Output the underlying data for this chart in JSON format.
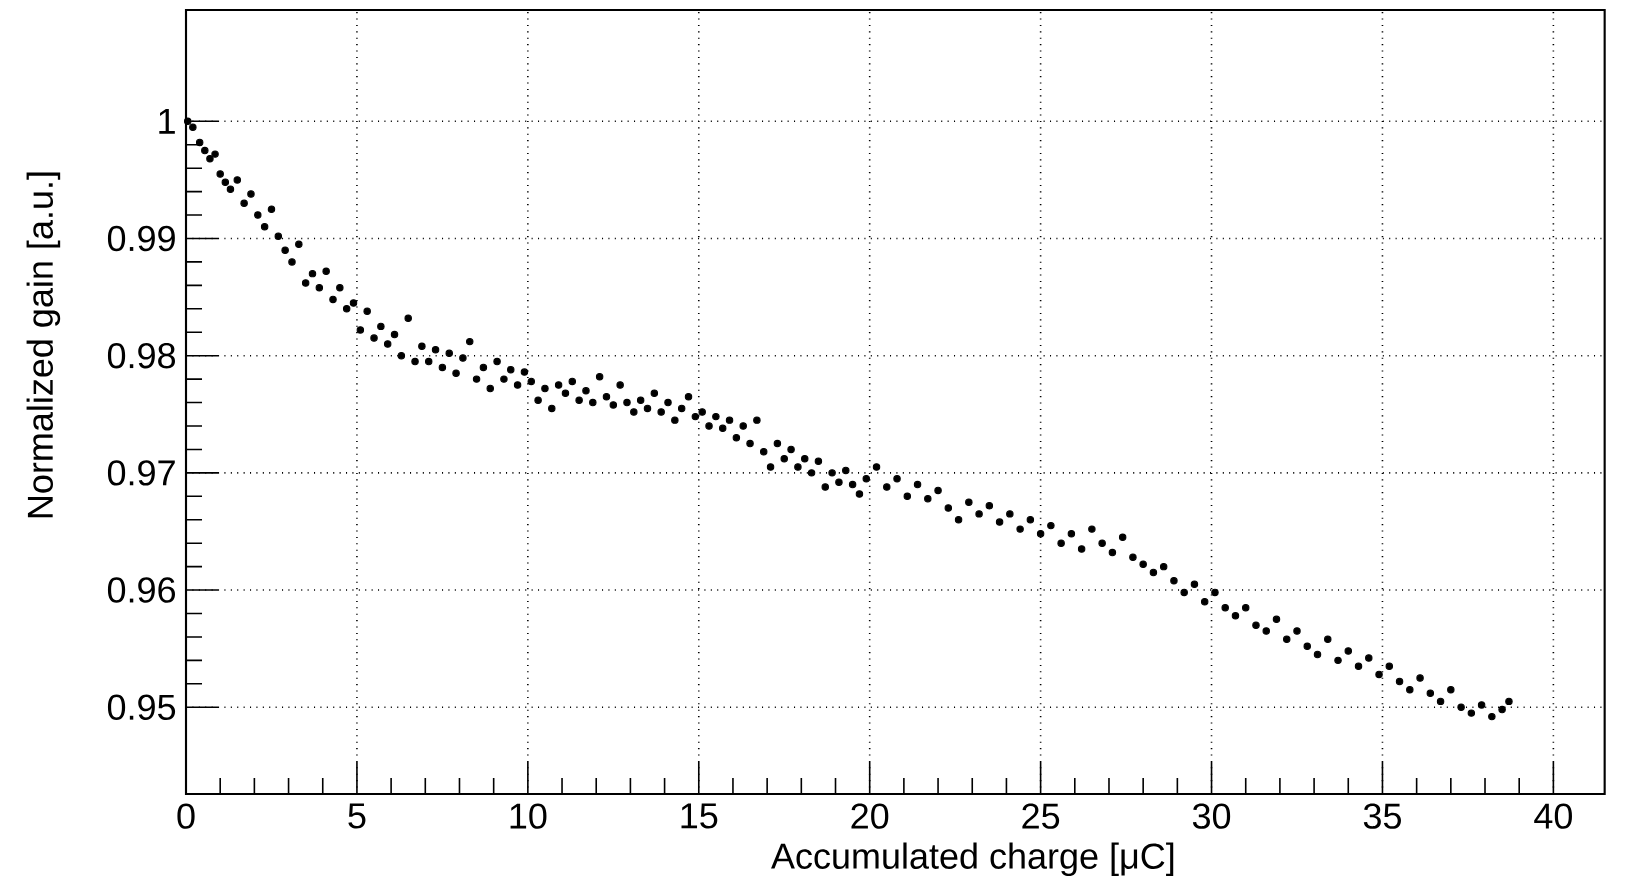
{
  "chart_data": {
    "type": "scatter",
    "xlabel": "Accumulated charge   [μC]",
    "ylabel": "Normalized gain  [a.u.]",
    "xlim": [
      0,
      41.5
    ],
    "ylim": [
      0.9426,
      1.0095
    ],
    "xticks": [
      0,
      5,
      10,
      15,
      20,
      25,
      30,
      35,
      40
    ],
    "yticks": [
      0.95,
      0.96,
      0.97,
      0.98,
      0.99,
      1
    ],
    "grid": true,
    "marker": "circle",
    "color": "#000000",
    "x": [
      0.05,
      0.2,
      0.4,
      0.55,
      0.7,
      0.85,
      1.0,
      1.15,
      1.3,
      1.5,
      1.7,
      1.9,
      2.1,
      2.3,
      2.5,
      2.7,
      2.9,
      3.1,
      3.3,
      3.5,
      3.7,
      3.9,
      4.1,
      4.3,
      4.5,
      4.7,
      4.9,
      5.1,
      5.3,
      5.5,
      5.7,
      5.9,
      6.1,
      6.3,
      6.5,
      6.7,
      6.9,
      7.1,
      7.3,
      7.5,
      7.7,
      7.9,
      8.1,
      8.3,
      8.5,
      8.7,
      8.9,
      9.1,
      9.3,
      9.5,
      9.7,
      9.9,
      10.1,
      10.3,
      10.5,
      10.7,
      10.9,
      11.1,
      11.3,
      11.5,
      11.7,
      11.9,
      12.1,
      12.3,
      12.5,
      12.7,
      12.9,
      13.1,
      13.3,
      13.5,
      13.7,
      13.9,
      14.1,
      14.3,
      14.5,
      14.7,
      14.9,
      15.1,
      15.3,
      15.5,
      15.7,
      15.9,
      16.1,
      16.3,
      16.5,
      16.7,
      16.9,
      17.1,
      17.3,
      17.5,
      17.7,
      17.9,
      18.1,
      18.3,
      18.5,
      18.7,
      18.9,
      19.1,
      19.3,
      19.5,
      19.7,
      19.9,
      20.2,
      20.5,
      20.8,
      21.1,
      21.4,
      21.7,
      22.0,
      22.3,
      22.6,
      22.9,
      23.2,
      23.5,
      23.8,
      24.1,
      24.4,
      24.7,
      25.0,
      25.3,
      25.6,
      25.9,
      26.2,
      26.5,
      26.8,
      27.1,
      27.4,
      27.7,
      28.0,
      28.3,
      28.6,
      28.9,
      29.2,
      29.5,
      29.8,
      30.1,
      30.4,
      30.7,
      31.0,
      31.3,
      31.6,
      31.9,
      32.2,
      32.5,
      32.8,
      33.1,
      33.4,
      33.7,
      34.0,
      34.3,
      34.6,
      34.9,
      35.2,
      35.5,
      35.8,
      36.1,
      36.4,
      36.7,
      37.0,
      37.3,
      37.6,
      37.9,
      38.2,
      38.5,
      38.7
    ],
    "values": [
      1.0,
      0.9995,
      0.9982,
      0.9975,
      0.9968,
      0.9972,
      0.9955,
      0.9948,
      0.9942,
      0.995,
      0.993,
      0.9938,
      0.992,
      0.991,
      0.9925,
      0.9902,
      0.989,
      0.988,
      0.9895,
      0.9862,
      0.987,
      0.9858,
      0.9872,
      0.9848,
      0.9858,
      0.984,
      0.9845,
      0.9822,
      0.9838,
      0.9815,
      0.9825,
      0.981,
      0.9818,
      0.98,
      0.9832,
      0.9795,
      0.9808,
      0.9795,
      0.9805,
      0.979,
      0.9802,
      0.9785,
      0.9798,
      0.9812,
      0.978,
      0.979,
      0.9772,
      0.9795,
      0.978,
      0.9788,
      0.9775,
      0.9786,
      0.9778,
      0.9762,
      0.9772,
      0.9755,
      0.9775,
      0.9768,
      0.9778,
      0.9762,
      0.977,
      0.976,
      0.9782,
      0.9765,
      0.9758,
      0.9775,
      0.976,
      0.9752,
      0.9762,
      0.9755,
      0.9768,
      0.9752,
      0.976,
      0.9745,
      0.9755,
      0.9765,
      0.9748,
      0.9752,
      0.974,
      0.9748,
      0.9738,
      0.9745,
      0.973,
      0.974,
      0.9725,
      0.9745,
      0.9718,
      0.9705,
      0.9725,
      0.9712,
      0.972,
      0.9705,
      0.9712,
      0.97,
      0.971,
      0.9688,
      0.97,
      0.9692,
      0.9702,
      0.969,
      0.9682,
      0.9695,
      0.9705,
      0.9688,
      0.9695,
      0.968,
      0.969,
      0.9678,
      0.9685,
      0.967,
      0.966,
      0.9675,
      0.9665,
      0.9672,
      0.9658,
      0.9665,
      0.9652,
      0.966,
      0.9648,
      0.9655,
      0.964,
      0.9648,
      0.9635,
      0.9652,
      0.964,
      0.9632,
      0.9645,
      0.9628,
      0.9622,
      0.9615,
      0.962,
      0.9608,
      0.9598,
      0.9605,
      0.959,
      0.9598,
      0.9585,
      0.9578,
      0.9585,
      0.957,
      0.9565,
      0.9575,
      0.9558,
      0.9565,
      0.9552,
      0.9545,
      0.9558,
      0.954,
      0.9548,
      0.9535,
      0.9542,
      0.9528,
      0.9535,
      0.9522,
      0.9515,
      0.9525,
      0.9512,
      0.9505,
      0.9515,
      0.95,
      0.9495,
      0.9502,
      0.9492,
      0.9498,
      0.9505
    ]
  }
}
